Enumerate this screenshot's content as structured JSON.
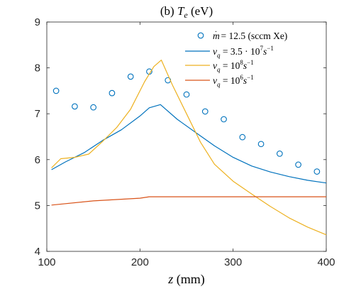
{
  "chart_data": {
    "type": "line",
    "title": "(b) T_e (eV)",
    "title_parts": {
      "prefix": "(b) ",
      "sym": "T",
      "sub": "e",
      "suffix": " (eV)"
    },
    "xlabel": "z (mm)",
    "xlabel_parts": {
      "var": "z",
      "unit": " (mm)"
    },
    "ylabel": "",
    "xlim": [
      100,
      400
    ],
    "ylim": [
      4,
      9
    ],
    "xticks": [
      100,
      200,
      300,
      400
    ],
    "yticks": [
      4,
      5,
      6,
      7,
      8,
      9
    ],
    "grid": false,
    "legend_position": "top-right",
    "series": [
      {
        "name": "ṁ = 12.5 (sccm Xe)",
        "legend_parts": {
          "base": "m",
          "rest": " = 12.5 (sccm Xe)"
        },
        "kind": "marker",
        "color": "#0072BD",
        "x": [
          110,
          130,
          150,
          170,
          190,
          210,
          230,
          250,
          270,
          290,
          310,
          330,
          350,
          370,
          390
        ],
        "y": [
          7.5,
          7.16,
          7.14,
          7.45,
          7.81,
          7.92,
          7.73,
          7.42,
          7.05,
          6.88,
          6.49,
          6.34,
          6.13,
          5.89,
          5.74
        ]
      },
      {
        "name": "ν_q = 3.5 · 10^7 s^-1",
        "legend_parts": {
          "base": "ν",
          "sub": "q",
          "rest": " = 3.5 · 10",
          "sup1": "7",
          "mid": "s",
          "sup2": "−1"
        },
        "kind": "line",
        "color": "#0072BD",
        "x": [
          105,
          120,
          140,
          160,
          180,
          200,
          210,
          222,
          240,
          260,
          280,
          300,
          320,
          340,
          360,
          380,
          400
        ],
        "y": [
          5.78,
          5.95,
          6.15,
          6.42,
          6.65,
          6.95,
          7.13,
          7.2,
          6.88,
          6.59,
          6.3,
          6.05,
          5.86,
          5.73,
          5.63,
          5.55,
          5.49
        ]
      },
      {
        "name": "ν_q = 10^8 s^-1",
        "legend_parts": {
          "base": "ν",
          "sub": "q",
          "rest": " = 10",
          "sup1": "8",
          "mid": "s",
          "sup2": "−1"
        },
        "kind": "line",
        "color": "#EDB120",
        "x": [
          105,
          115,
          130,
          145,
          160,
          175,
          190,
          205,
          215,
          223,
          235,
          250,
          265,
          280,
          300,
          320,
          340,
          360,
          380,
          400
        ],
        "y": [
          5.82,
          6.02,
          6.05,
          6.12,
          6.4,
          6.7,
          7.1,
          7.7,
          8.03,
          8.17,
          7.62,
          7.0,
          6.38,
          5.9,
          5.53,
          5.25,
          4.98,
          4.73,
          4.53,
          4.36
        ]
      },
      {
        "name": "ν_q = 10^6 s^-1",
        "legend_parts": {
          "base": "ν",
          "sub": "q",
          "rest": " = 10",
          "sup1": "6",
          "mid": "s",
          "sup2": "−1"
        },
        "kind": "line",
        "color": "#D95319",
        "x": [
          105,
          150,
          200,
          210,
          250,
          300,
          350,
          400
        ],
        "y": [
          5.01,
          5.1,
          5.16,
          5.19,
          5.19,
          5.19,
          5.19,
          5.19
        ]
      }
    ]
  }
}
